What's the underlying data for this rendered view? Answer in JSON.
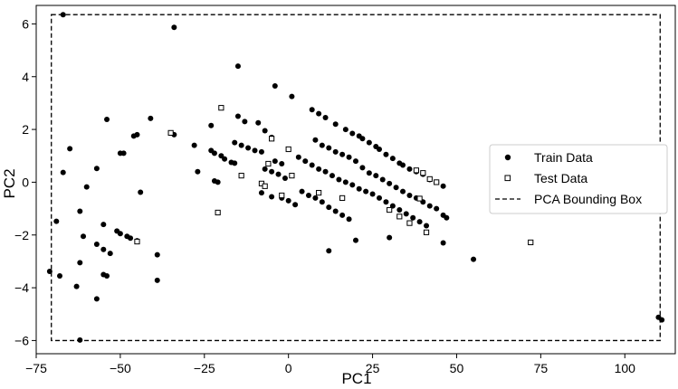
{
  "chart_data": {
    "type": "scatter",
    "xlabel": "PC1",
    "ylabel": "PC2",
    "xlim": [
      -75,
      115
    ],
    "ylim": [
      -6.5,
      6.7
    ],
    "xticks": [
      -75,
      -50,
      -25,
      0,
      25,
      50,
      75,
      100
    ],
    "yticks": [
      -6,
      -4,
      -2,
      0,
      2,
      4,
      6
    ],
    "grid": false,
    "legend_position": "center-right",
    "series": [
      {
        "name": "Train Data",
        "marker": "filled-circle",
        "color": "#000000",
        "points": [
          [
            -67,
            6.35
          ],
          [
            -34,
            5.87
          ],
          [
            -15,
            4.4
          ],
          [
            -4,
            3.65
          ],
          [
            1,
            3.25
          ],
          [
            -41,
            2.42
          ],
          [
            -54,
            2.38
          ],
          [
            -45,
            1.8
          ],
          [
            -46,
            1.75
          ],
          [
            -65,
            1.27
          ],
          [
            -50,
            1.1
          ],
          [
            -49,
            1.1
          ],
          [
            -57,
            0.52
          ],
          [
            -67,
            0.37
          ],
          [
            -60,
            -0.18
          ],
          [
            -44,
            -0.38
          ],
          [
            -62,
            -1.1
          ],
          [
            -69,
            -1.48
          ],
          [
            -55,
            -1.6
          ],
          [
            -51,
            -1.85
          ],
          [
            -50,
            -1.95
          ],
          [
            -48,
            -2.05
          ],
          [
            -47,
            -2.12
          ],
          [
            -45,
            -2.22
          ],
          [
            -61,
            -2.05
          ],
          [
            -57,
            -2.35
          ],
          [
            -55,
            -2.55
          ],
          [
            -53,
            -2.7
          ],
          [
            -39,
            -2.75
          ],
          [
            -62,
            -3.05
          ],
          [
            -55,
            -3.5
          ],
          [
            -54,
            -3.55
          ],
          [
            -71,
            -3.38
          ],
          [
            -68,
            -3.55
          ],
          [
            -39,
            -3.72
          ],
          [
            -63,
            -3.95
          ],
          [
            -57,
            -4.42
          ],
          [
            -62,
            -5.98
          ],
          [
            110,
            -5.12
          ],
          [
            111,
            -5.22
          ],
          [
            55,
            -2.92
          ],
          [
            12,
            -2.6
          ],
          [
            20,
            -2.2
          ],
          [
            30,
            -2.1
          ],
          [
            46,
            -2.3
          ],
          [
            -34,
            1.8
          ],
          [
            -15,
            2.5
          ],
          [
            -13,
            2.3
          ],
          [
            -9,
            2.25
          ],
          [
            -7,
            1.95
          ],
          [
            -5,
            1.7
          ],
          [
            -23,
            2.15
          ],
          [
            -28,
            1.4
          ],
          [
            -23,
            1.2
          ],
          [
            -22,
            1.1
          ],
          [
            -20,
            1.0
          ],
          [
            -19,
            0.88
          ],
          [
            -17,
            0.75
          ],
          [
            -16,
            0.72
          ],
          [
            -27,
            0.4
          ],
          [
            -22,
            0.05
          ],
          [
            -21,
            0.0
          ],
          [
            -16,
            1.5
          ],
          [
            -14,
            1.4
          ],
          [
            -12,
            1.3
          ],
          [
            -10,
            1.2
          ],
          [
            -8,
            1.15
          ],
          [
            -7,
            0.5
          ],
          [
            -5,
            0.4
          ],
          [
            -3,
            0.3
          ],
          [
            -1,
            0.15
          ],
          [
            3,
            0.95
          ],
          [
            5,
            0.8
          ],
          [
            7,
            0.65
          ],
          [
            9,
            0.5
          ],
          [
            11,
            0.4
          ],
          [
            13,
            0.25
          ],
          [
            15,
            0.1
          ],
          [
            17,
            0.0
          ],
          [
            19,
            -0.1
          ],
          [
            21,
            -0.25
          ],
          [
            23,
            -0.35
          ],
          [
            25,
            -0.45
          ],
          [
            27,
            -0.6
          ],
          [
            29,
            -0.75
          ],
          [
            31,
            -0.9
          ],
          [
            33,
            -1.05
          ],
          [
            35,
            -1.2
          ],
          [
            37,
            -1.35
          ],
          [
            39,
            -1.5
          ],
          [
            41,
            -1.65
          ],
          [
            -8,
            -0.4
          ],
          [
            -5,
            -0.55
          ],
          [
            -2,
            -0.6
          ],
          [
            0,
            -0.7
          ],
          [
            2,
            -0.85
          ],
          [
            7,
            2.75
          ],
          [
            9,
            2.6
          ],
          [
            11,
            2.45
          ],
          [
            14,
            2.2
          ],
          [
            17,
            2.0
          ],
          [
            19,
            1.85
          ],
          [
            21,
            1.75
          ],
          [
            22,
            1.65
          ],
          [
            24,
            1.5
          ],
          [
            26,
            1.35
          ],
          [
            27,
            1.25
          ],
          [
            29,
            1.05
          ],
          [
            31,
            0.9
          ],
          [
            33,
            0.72
          ],
          [
            34,
            0.65
          ],
          [
            36,
            0.5
          ],
          [
            38,
            0.4
          ],
          [
            40,
            0.3
          ],
          [
            42,
            0.1
          ],
          [
            44,
            0.0
          ],
          [
            46,
            -0.15
          ],
          [
            8,
            1.6
          ],
          [
            10,
            1.4
          ],
          [
            12,
            1.3
          ],
          [
            14,
            1.15
          ],
          [
            16,
            1.05
          ],
          [
            18,
            0.95
          ],
          [
            20,
            0.8
          ],
          [
            22,
            0.55
          ],
          [
            24,
            0.35
          ],
          [
            26,
            0.25
          ],
          [
            28,
            0.1
          ],
          [
            30,
            -0.05
          ],
          [
            32,
            -0.2
          ],
          [
            34,
            -0.35
          ],
          [
            36,
            -0.5
          ],
          [
            38,
            -0.6
          ],
          [
            40,
            -0.75
          ],
          [
            42,
            -0.9
          ],
          [
            44,
            -1.0
          ],
          [
            46,
            -1.25
          ],
          [
            47,
            -1.35
          ],
          [
            4,
            -0.35
          ],
          [
            6,
            -0.5
          ],
          [
            8,
            -0.6
          ],
          [
            10,
            -0.75
          ],
          [
            12,
            -0.95
          ],
          [
            14,
            -1.1
          ],
          [
            16,
            -1.25
          ],
          [
            18,
            -1.4
          ],
          [
            -4,
            0.8
          ],
          [
            -2,
            0.7
          ]
        ]
      },
      {
        "name": "Test Data",
        "marker": "open-square",
        "color": "#000000",
        "points": [
          [
            -20,
            2.82
          ],
          [
            -35,
            1.87
          ],
          [
            -5,
            1.65
          ],
          [
            0,
            1.25
          ],
          [
            -14,
            0.25
          ],
          [
            -6,
            0.7
          ],
          [
            1,
            0.25
          ],
          [
            -21,
            -1.15
          ],
          [
            -8,
            -0.05
          ],
          [
            -7,
            -0.15
          ],
          [
            -2,
            -0.5
          ],
          [
            9,
            -0.4
          ],
          [
            16,
            -0.6
          ],
          [
            30,
            -1.05
          ],
          [
            33,
            -1.3
          ],
          [
            36,
            -1.55
          ],
          [
            41,
            -1.9
          ],
          [
            39,
            -0.62
          ],
          [
            38,
            0.45
          ],
          [
            40,
            0.35
          ],
          [
            42,
            0.12
          ],
          [
            44,
            0.0
          ],
          [
            72,
            -2.28
          ],
          [
            -45,
            -2.25
          ]
        ]
      }
    ],
    "bounding_box": {
      "name": "PCA Bounding Box",
      "style": "dashed",
      "x_range": [
        -70.5,
        110.5
      ],
      "y_range": [
        -6.0,
        6.35
      ]
    }
  }
}
